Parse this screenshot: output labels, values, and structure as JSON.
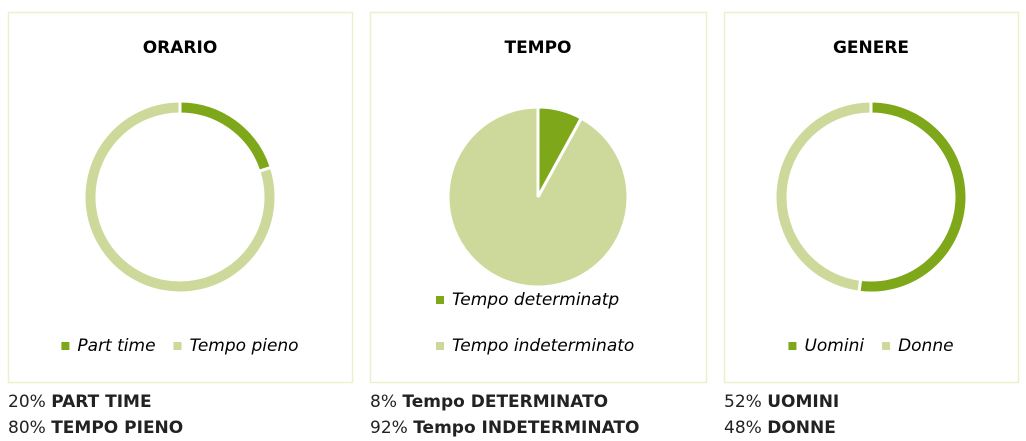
{
  "chart_data": [
    {
      "type": "donut",
      "title": "ORARIO",
      "categories": [
        "Part time",
        "Tempo pieno"
      ],
      "values": [
        20,
        80
      ],
      "value_labels": [
        "20%",
        "80%"
      ],
      "captions": [
        "PART TIME",
        "TEMPO PIENO"
      ],
      "colors": [
        "#7ea81a",
        "#cdd99a"
      ],
      "legend_layout": "horizontal"
    },
    {
      "type": "pie",
      "title": "TEMPO",
      "categories": [
        "Tempo determinatp",
        "Tempo indeterminato"
      ],
      "values": [
        8,
        92
      ],
      "value_labels": [
        "8%",
        "92%"
      ],
      "captions": [
        "Tempo DETERMINATO",
        "Tempo INDETERMINATO"
      ],
      "colors": [
        "#7ea81a",
        "#cdd99a"
      ],
      "legend_layout": "vertical"
    },
    {
      "type": "donut",
      "title": "GENERE",
      "categories": [
        "Uomini",
        "Donne"
      ],
      "values": [
        52,
        48
      ],
      "value_labels": [
        "52%",
        "48%"
      ],
      "captions": [
        "UOMINI",
        "DONNE"
      ],
      "colors": [
        "#7ea81a",
        "#cdd99a"
      ],
      "legend_layout": "horizontal"
    }
  ]
}
